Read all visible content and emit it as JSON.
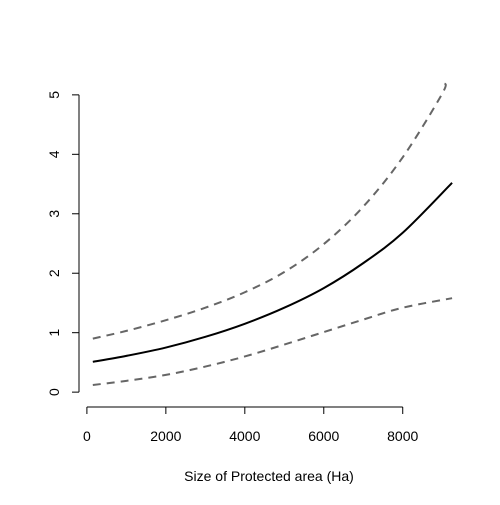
{
  "chart_data": {
    "type": "line",
    "title": "",
    "xlabel": "Size of Protected area (Ha)",
    "ylabel": "",
    "xlim": [
      -200,
      9400
    ],
    "ylim": [
      -0.25,
      5.25
    ],
    "xticks": [
      0,
      2000,
      4000,
      6000,
      8000
    ],
    "yticks": [
      0,
      1,
      2,
      3,
      4,
      5
    ],
    "grid": false,
    "legend": "none",
    "series": [
      {
        "color": "#000000",
        "dash": "solid",
        "x": [
          150,
          1000,
          2000,
          3000,
          4000,
          5000,
          6000,
          7000,
          8000,
          9250
        ],
        "y": [
          0.51,
          0.61,
          0.75,
          0.93,
          1.15,
          1.42,
          1.75,
          2.17,
          2.68,
          3.52
        ]
      },
      {
        "color": "#666666",
        "dash": "dashed",
        "x": [
          150,
          1000,
          2000,
          3000,
          4000,
          5000,
          6000,
          7000,
          8000,
          9000,
          9050
        ],
        "y": [
          0.9,
          1.03,
          1.21,
          1.42,
          1.68,
          2.02,
          2.49,
          3.12,
          3.95,
          5.02,
          5.2
        ]
      },
      {
        "color": "#666666",
        "dash": "dashed",
        "x": [
          150,
          1000,
          2000,
          3000,
          4000,
          5000,
          6000,
          7000,
          8000,
          9250
        ],
        "y": [
          0.12,
          0.19,
          0.29,
          0.43,
          0.6,
          0.8,
          1.01,
          1.22,
          1.42,
          1.58
        ]
      }
    ]
  }
}
